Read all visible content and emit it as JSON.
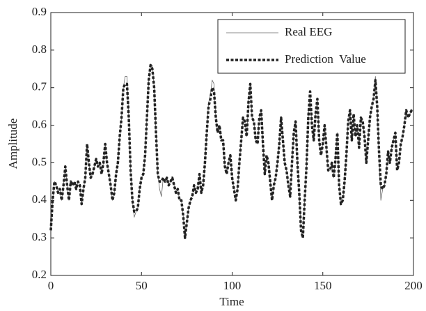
{
  "chart_data": {
    "type": "line",
    "xlabel": "Time",
    "ylabel": "Amplitude",
    "xlim": [
      0,
      200
    ],
    "xticks": [
      0,
      50,
      100,
      150,
      200
    ],
    "ylim": [
      0.2,
      0.9
    ],
    "yticks": [
      0.2,
      0.3,
      0.4,
      0.5,
      0.6,
      0.7,
      0.8,
      0.9
    ],
    "legend": "upper right",
    "x": [
      0,
      1,
      2,
      3,
      4,
      5,
      6,
      7,
      8,
      9,
      10,
      11,
      12,
      13,
      14,
      15,
      16,
      17,
      18,
      19,
      20,
      21,
      22,
      23,
      24,
      25,
      26,
      27,
      28,
      29,
      30,
      31,
      32,
      33,
      34,
      35,
      36,
      37,
      38,
      39,
      40,
      41,
      42,
      43,
      44,
      45,
      46,
      47,
      48,
      49,
      50,
      51,
      52,
      53,
      54,
      55,
      56,
      57,
      58,
      59,
      60,
      61,
      62,
      63,
      64,
      65,
      66,
      67,
      68,
      69,
      70,
      71,
      72,
      73,
      74,
      75,
      76,
      77,
      78,
      79,
      80,
      81,
      82,
      83,
      84,
      85,
      86,
      87,
      88,
      89,
      90,
      91,
      92,
      93,
      94,
      95,
      96,
      97,
      98,
      99,
      100,
      101,
      102,
      103,
      104,
      105,
      106,
      107,
      108,
      109,
      110,
      111,
      112,
      113,
      114,
      115,
      116,
      117,
      118,
      119,
      120,
      121,
      122,
      123,
      124,
      125,
      126,
      127,
      128,
      129,
      130,
      131,
      132,
      133,
      134,
      135,
      136,
      137,
      138,
      139,
      140,
      141,
      142,
      143,
      144,
      145,
      146,
      147,
      148,
      149,
      150,
      151,
      152,
      153,
      154,
      155,
      156,
      157,
      158,
      159,
      160,
      161,
      162,
      163,
      164,
      165,
      166,
      167,
      168,
      169,
      170,
      171,
      172,
      173,
      174,
      175,
      176,
      177,
      178,
      179,
      180,
      181,
      182,
      183,
      184,
      185,
      186,
      187,
      188,
      189,
      190,
      191,
      192,
      193,
      194,
      195,
      196,
      197,
      198,
      199,
      200
    ],
    "series": [
      {
        "name": "Real EEG",
        "color": "#666666",
        "width": 0.8,
        "dash": "none",
        "values": [
          0.32,
          0.4,
          0.45,
          0.44,
          0.42,
          0.43,
          0.4,
          0.44,
          0.49,
          0.44,
          0.4,
          0.45,
          0.44,
          0.45,
          0.43,
          0.45,
          0.44,
          0.39,
          0.43,
          0.46,
          0.55,
          0.5,
          0.46,
          0.47,
          0.49,
          0.51,
          0.49,
          0.5,
          0.47,
          0.5,
          0.55,
          0.5,
          0.47,
          0.44,
          0.4,
          0.42,
          0.47,
          0.5,
          0.57,
          0.62,
          0.7,
          0.73,
          0.73,
          0.62,
          0.48,
          0.4,
          0.355,
          0.37,
          0.38,
          0.43,
          0.46,
          0.47,
          0.52,
          0.62,
          0.72,
          0.76,
          0.76,
          0.7,
          0.58,
          0.47,
          0.43,
          0.41,
          0.46,
          0.45,
          0.46,
          0.44,
          0.45,
          0.46,
          0.44,
          0.42,
          0.43,
          0.4,
          0.4,
          0.36,
          0.3,
          0.34,
          0.38,
          0.4,
          0.41,
          0.44,
          0.42,
          0.43,
          0.47,
          0.42,
          0.44,
          0.5,
          0.58,
          0.66,
          0.68,
          0.72,
          0.71,
          0.62,
          0.58,
          0.6,
          0.56,
          0.56,
          0.49,
          0.47,
          0.5,
          0.52,
          0.46,
          0.43,
          0.4,
          0.43,
          0.5,
          0.56,
          0.62,
          0.61,
          0.57,
          0.66,
          0.71,
          0.62,
          0.61,
          0.56,
          0.55,
          0.62,
          0.64,
          0.55,
          0.47,
          0.52,
          0.5,
          0.45,
          0.4,
          0.44,
          0.46,
          0.5,
          0.55,
          0.62,
          0.56,
          0.5,
          0.48,
          0.44,
          0.41,
          0.5,
          0.58,
          0.61,
          0.5,
          0.42,
          0.32,
          0.3,
          0.4,
          0.49,
          0.62,
          0.68,
          0.6,
          0.56,
          0.63,
          0.67,
          0.56,
          0.52,
          0.55,
          0.6,
          0.54,
          0.48,
          0.48,
          0.5,
          0.46,
          0.51,
          0.58,
          0.44,
          0.39,
          0.4,
          0.45,
          0.52,
          0.61,
          0.64,
          0.56,
          0.63,
          0.57,
          0.6,
          0.54,
          0.62,
          0.61,
          0.57,
          0.5,
          0.56,
          0.62,
          0.65,
          0.67,
          0.73,
          0.65,
          0.52,
          0.4,
          0.43,
          0.44,
          0.47,
          0.53,
          0.5,
          0.54,
          0.56,
          0.58,
          0.48,
          0.5,
          0.55,
          0.57,
          0.6,
          0.64,
          0.62,
          0.63,
          0.64,
          0.64
        ]
      },
      {
        "name": "Prediction  Value",
        "color": "#222222",
        "width": 3.5,
        "dash": "4 2.5",
        "values": [
          0.32,
          0.4,
          0.45,
          0.44,
          0.42,
          0.43,
          0.4,
          0.44,
          0.49,
          0.44,
          0.4,
          0.45,
          0.44,
          0.45,
          0.43,
          0.45,
          0.44,
          0.39,
          0.43,
          0.46,
          0.55,
          0.5,
          0.46,
          0.47,
          0.49,
          0.51,
          0.49,
          0.5,
          0.47,
          0.5,
          0.55,
          0.5,
          0.47,
          0.44,
          0.4,
          0.42,
          0.47,
          0.5,
          0.57,
          0.62,
          0.7,
          0.71,
          0.71,
          0.62,
          0.48,
          0.4,
          0.37,
          0.37,
          0.38,
          0.43,
          0.46,
          0.47,
          0.52,
          0.62,
          0.72,
          0.76,
          0.75,
          0.7,
          0.58,
          0.47,
          0.45,
          0.45,
          0.46,
          0.45,
          0.46,
          0.44,
          0.45,
          0.46,
          0.44,
          0.42,
          0.43,
          0.4,
          0.4,
          0.36,
          0.3,
          0.34,
          0.38,
          0.4,
          0.41,
          0.44,
          0.42,
          0.43,
          0.47,
          0.42,
          0.44,
          0.5,
          0.58,
          0.65,
          0.67,
          0.7,
          0.69,
          0.62,
          0.58,
          0.6,
          0.56,
          0.56,
          0.49,
          0.47,
          0.5,
          0.52,
          0.46,
          0.43,
          0.4,
          0.43,
          0.5,
          0.56,
          0.62,
          0.61,
          0.57,
          0.66,
          0.71,
          0.62,
          0.61,
          0.56,
          0.55,
          0.62,
          0.64,
          0.55,
          0.47,
          0.52,
          0.5,
          0.45,
          0.4,
          0.44,
          0.46,
          0.5,
          0.55,
          0.62,
          0.56,
          0.5,
          0.48,
          0.44,
          0.41,
          0.5,
          0.58,
          0.61,
          0.5,
          0.42,
          0.32,
          0.3,
          0.4,
          0.49,
          0.62,
          0.69,
          0.6,
          0.56,
          0.63,
          0.67,
          0.56,
          0.52,
          0.55,
          0.6,
          0.54,
          0.48,
          0.48,
          0.5,
          0.46,
          0.51,
          0.58,
          0.44,
          0.39,
          0.4,
          0.45,
          0.52,
          0.61,
          0.64,
          0.56,
          0.63,
          0.57,
          0.6,
          0.54,
          0.62,
          0.61,
          0.57,
          0.5,
          0.56,
          0.62,
          0.65,
          0.67,
          0.72,
          0.65,
          0.53,
          0.44,
          0.43,
          0.44,
          0.47,
          0.53,
          0.5,
          0.54,
          0.56,
          0.58,
          0.48,
          0.5,
          0.55,
          0.57,
          0.6,
          0.64,
          0.62,
          0.63,
          0.64,
          0.64
        ]
      }
    ]
  }
}
